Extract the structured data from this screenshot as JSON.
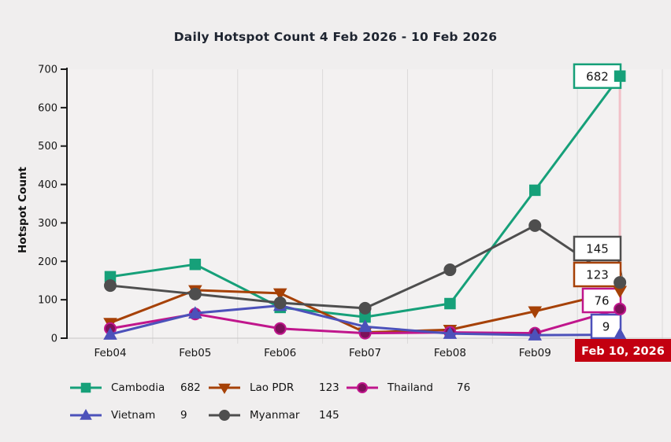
{
  "page": {
    "background": "#f0eeee"
  },
  "chart_data": {
    "type": "line",
    "title": "Daily Hotspot Count 4 Feb 2026 - 10 Feb 2026",
    "ylabel": "Hotspot Count",
    "xlabel": "",
    "ylim": [
      0,
      700
    ],
    "y_tick_step": 100,
    "grid": "vertical",
    "legend_position": "bottom",
    "categories": [
      "Feb04",
      "Feb05",
      "Feb06",
      "Feb07",
      "Feb08",
      "Feb09",
      "Feb10"
    ],
    "x_axis_labels": [
      "Feb04",
      "Feb05",
      "Feb06",
      "Feb07",
      "Feb08",
      "Feb09"
    ],
    "highlight_label": {
      "text": "Feb 10, 2026",
      "bg": "#c30010",
      "fg": "#ffffff"
    },
    "series": [
      {
        "name": "Cambodia",
        "color": "#16a079",
        "marker": "square",
        "values": [
          160,
          192,
          80,
          55,
          90,
          385,
          682
        ],
        "end_label": "682"
      },
      {
        "name": "Lao PDR",
        "color": "#a64106",
        "marker": "triangle-down",
        "values": [
          40,
          125,
          117,
          15,
          22,
          70,
          123
        ],
        "end_label": "123"
      },
      {
        "name": "Thailand",
        "color": "#c0168c",
        "marker": "circle",
        "marker_fill": "#7d1059",
        "values": [
          25,
          63,
          25,
          13,
          15,
          13,
          76
        ],
        "end_label": "76"
      },
      {
        "name": "Vietnam",
        "color": "#4c51ba",
        "marker": "triangle-up",
        "values": [
          10,
          65,
          85,
          30,
          12,
          8,
          9
        ],
        "end_label": "9"
      },
      {
        "name": "Myanmar",
        "color": "#4e4e4e",
        "marker": "circle",
        "values": [
          137,
          115,
          92,
          78,
          178,
          293,
          145
        ],
        "end_label": "145"
      }
    ],
    "legend": {
      "items": [
        {
          "label": "Cambodia",
          "value": "682"
        },
        {
          "label": "Lao PDR",
          "value": "123"
        },
        {
          "label": "Thailand",
          "value": "76"
        },
        {
          "label": "Vietnam",
          "value": "9"
        },
        {
          "label": "Myanmar",
          "value": "145"
        }
      ]
    }
  }
}
